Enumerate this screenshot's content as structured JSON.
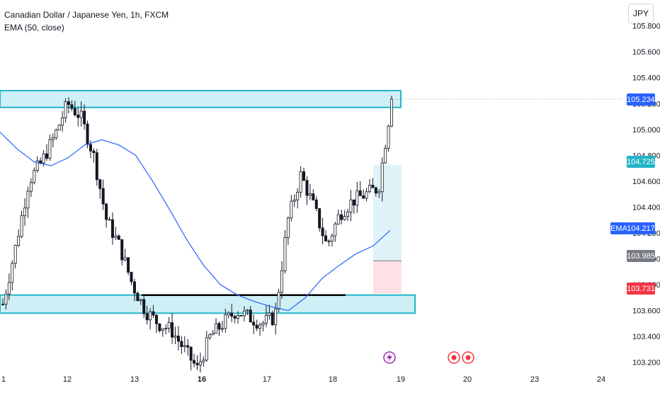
{
  "legend": {
    "symbol_title": "Canadian Dollar / Japanese Yen, 1h, FXCM",
    "indicator": "EMA (50, close)"
  },
  "currency_button": "JPY",
  "price_axis": {
    "ticks": [
      "105.800",
      "105.600",
      "105.400",
      "105.200",
      "105.000",
      "104.800",
      "104.600",
      "104.400",
      "104.200",
      "104.000",
      "103.800",
      "103.600",
      "103.400",
      "103.200"
    ]
  },
  "time_axis": {
    "ticks": [
      "1",
      "12",
      "13",
      "16",
      "17",
      "18",
      "19",
      "20",
      "23",
      "24"
    ]
  },
  "price_tags": {
    "last_price": "105.234",
    "target": "104.725",
    "ema_label": "EMA",
    "ema_value": "104.217",
    "entry": "103.985",
    "stop": "103.731"
  },
  "colors": {
    "up_candle": "#131722",
    "zone_fill": "#cdeff5",
    "zone_border": "#22b5c8",
    "ema_line": "#2962ff",
    "last_price_tag": "#2962ff",
    "target_tag": "#22b5c8",
    "entry_tag": "#787b86",
    "stop_tag": "#f23645",
    "profit_fill": "#dff3f8",
    "loss_fill": "#fde1e4"
  },
  "events": {
    "lightning_icon": "lightning-icon",
    "event_icon": "economic-event-icon"
  },
  "chart_data": {
    "type": "candlestick",
    "symbol": "CADJPY",
    "timeframe": "1h",
    "price_range": [
      103.1,
      105.88
    ],
    "resistance_zone": [
      105.17,
      105.3
    ],
    "support_zone": [
      103.58,
      103.72
    ],
    "support_line": 103.72,
    "trade_setup": {
      "entry": 103.985,
      "target": 104.725,
      "stop": 103.731
    },
    "ema_50": [
      104.98,
      104.85,
      104.75,
      104.72,
      104.78,
      104.88,
      104.92,
      104.88,
      104.8,
      104.6,
      104.38,
      104.15,
      103.95,
      103.8,
      103.72,
      103.67,
      103.63,
      103.6,
      103.7,
      103.85,
      103.95,
      104.04,
      104.1,
      104.22
    ],
    "closes": [
      103.65,
      104.1,
      104.6,
      104.75,
      104.95,
      105.2,
      105.1,
      104.8,
      104.3,
      104.1,
      103.8,
      103.6,
      103.5,
      103.45,
      103.3,
      103.15,
      103.4,
      103.5,
      103.6,
      103.55,
      103.5,
      103.55,
      104.3,
      104.65,
      104.4,
      104.1,
      104.35,
      104.45,
      104.5,
      104.55,
      105.234
    ]
  }
}
